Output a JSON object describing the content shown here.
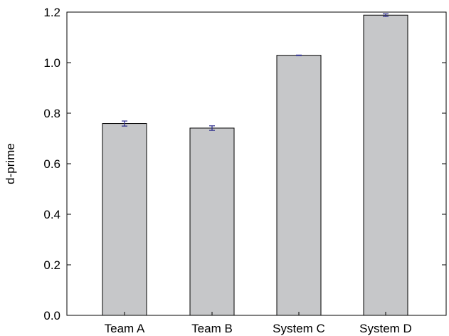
{
  "chart_data": {
    "type": "bar",
    "title": "",
    "xlabel": "",
    "ylabel": "d-prime",
    "categories": [
      "Team A",
      "Team B",
      "System C",
      "System D"
    ],
    "values": [
      0.759,
      0.741,
      1.029,
      1.188
    ],
    "error": [
      0.01,
      0.009,
      0.001,
      0.005
    ],
    "ylim": [
      0.0,
      1.2
    ],
    "yticks": [
      "0.0",
      "0.2",
      "0.4",
      "0.6",
      "0.8",
      "1.0",
      "1.2"
    ],
    "ytick_values": [
      0.0,
      0.2,
      0.4,
      0.6,
      0.8,
      1.0,
      1.2
    ],
    "grid": false,
    "legend": "none",
    "colors": {
      "bar_fill": "#c6c7c9",
      "bar_edge": "#000000",
      "error_bar": "#2b2b8c",
      "axis": "#000000"
    }
  }
}
